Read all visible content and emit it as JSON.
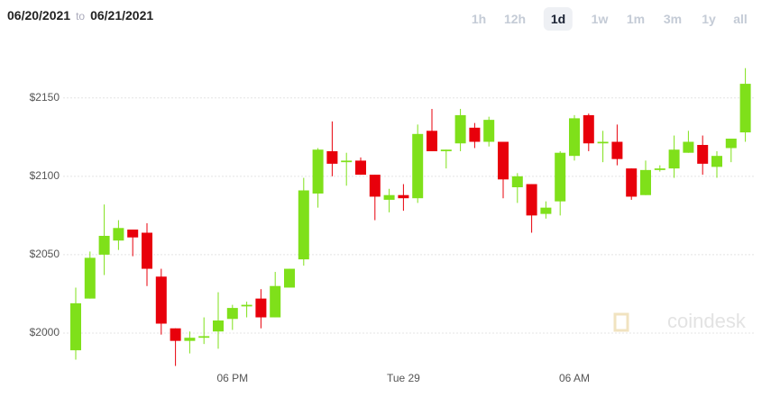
{
  "header": {
    "date_from": "06/20/2021",
    "separator": "to",
    "date_to": "06/21/2021",
    "ranges": [
      "1h",
      "12h",
      "1d",
      "1w",
      "1m",
      "3m",
      "1y",
      "all"
    ],
    "active_range": 2
  },
  "chart_data": {
    "type": "candlestick",
    "watermark": "coindesk",
    "up_color": "#7fe01a",
    "down_color": "#e8000b",
    "categories": [
      null,
      null,
      null,
      null,
      null,
      null,
      null,
      null,
      null,
      null,
      null,
      "06 PM",
      null,
      null,
      null,
      null,
      null,
      null,
      null,
      null,
      null,
      null,
      null,
      "Tue 29",
      null,
      null,
      null,
      null,
      null,
      null,
      null,
      null,
      null,
      null,
      null,
      "06 AM",
      null,
      null,
      null,
      null,
      null,
      null,
      null,
      null,
      null,
      null,
      null,
      null
    ],
    "open": [
      1989,
      2022,
      2050,
      2059,
      2066,
      2064,
      2036,
      2003,
      1995,
      1997,
      2001,
      2009,
      2017,
      2022,
      2010,
      2029,
      2047,
      2089,
      2116,
      2109,
      2110,
      2101,
      2085,
      2088,
      2086,
      2129,
      2116,
      2121,
      2131,
      2122,
      2122,
      2093,
      2095,
      2076,
      2084,
      2113,
      2139,
      2121,
      2122,
      2105,
      2088,
      2104,
      2105,
      2115,
      2120,
      2106,
      2118,
      2128
    ],
    "high": [
      2029,
      2052,
      2082,
      2072,
      2066,
      2070,
      2041,
      2003,
      2001,
      2010,
      2026,
      2018,
      2020,
      2028,
      2039,
      2041,
      2099,
      2118,
      2135,
      2115,
      2112,
      2101,
      2092,
      2095,
      2133,
      2143,
      2117,
      2143,
      2134,
      2138,
      2122,
      2102,
      2095,
      2084,
      2116,
      2139,
      2140,
      2129,
      2133,
      2105,
      2110,
      2107,
      2126,
      2129,
      2126,
      2116,
      2124,
      2169
    ],
    "low": [
      1983,
      2022,
      2037,
      2053,
      2049,
      2030,
      1999,
      1979,
      1987,
      1993,
      1990,
      2002,
      2010,
      2003,
      2010,
      2029,
      2043,
      2080,
      2100,
      2094,
      2101,
      2072,
      2077,
      2078,
      2083,
      2116,
      2105,
      2116,
      2118,
      2119,
      2086,
      2083,
      2064,
      2073,
      2075,
      2110,
      2116,
      2109,
      2107,
      2085,
      2088,
      2103,
      2099,
      2115,
      2101,
      2099,
      2109,
      2122
    ],
    "close": [
      2019,
      2048,
      2062,
      2067,
      2061,
      2041,
      2006,
      1995,
      1997,
      1998,
      2008,
      2016,
      2018,
      2010,
      2030,
      2041,
      2091,
      2117,
      2108,
      2110,
      2101,
      2087,
      2088,
      2086,
      2127,
      2116,
      2117,
      2139,
      2122,
      2136,
      2098,
      2100,
      2075,
      2080,
      2115,
      2137,
      2121,
      2122,
      2111,
      2087,
      2104,
      2105,
      2117,
      2122,
      2108,
      2113,
      2124,
      2159
    ],
    "ylim": [
      1977,
      2178
    ],
    "yticks": [
      {
        "value": 2000,
        "label": "$2000"
      },
      {
        "value": 2050,
        "label": "$2050"
      },
      {
        "value": 2100,
        "label": "$2100"
      },
      {
        "value": 2150,
        "label": "$2150"
      }
    ],
    "grid": true
  }
}
